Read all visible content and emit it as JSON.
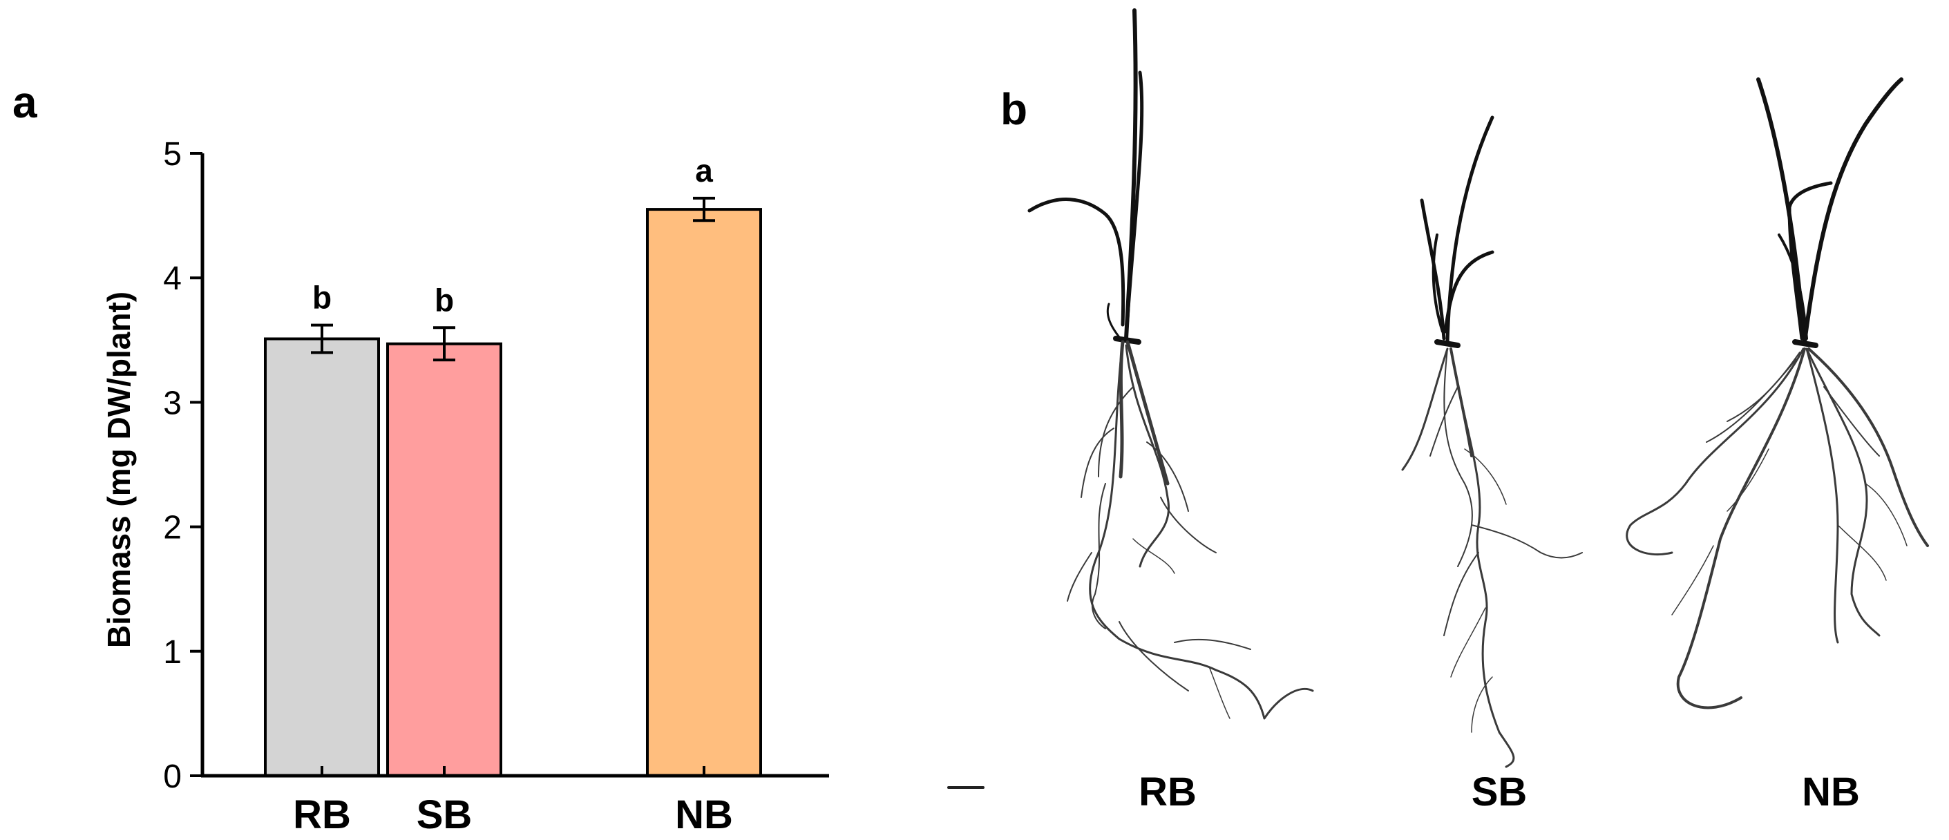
{
  "panels": {
    "a": "a",
    "b": "b"
  },
  "chart_data": {
    "type": "bar",
    "title": "",
    "xlabel": "",
    "ylabel": "Biomass (mg DW/plant)",
    "ylim": [
      0,
      5
    ],
    "yticks": [
      "0",
      "1",
      "2",
      "3",
      "4",
      "5"
    ],
    "categories": [
      "RB",
      "SB",
      "NB"
    ],
    "values": [
      3.51,
      3.47,
      4.55
    ],
    "errors": [
      0.11,
      0.13,
      0.09
    ],
    "significance": [
      "b",
      "b",
      "a"
    ],
    "colors": [
      "#d4d4d4",
      "#ff9e9e",
      "#ffbe7e"
    ],
    "grid": false,
    "legend": "none"
  },
  "photo": {
    "labels": [
      "RB",
      "SB",
      "NB"
    ]
  }
}
